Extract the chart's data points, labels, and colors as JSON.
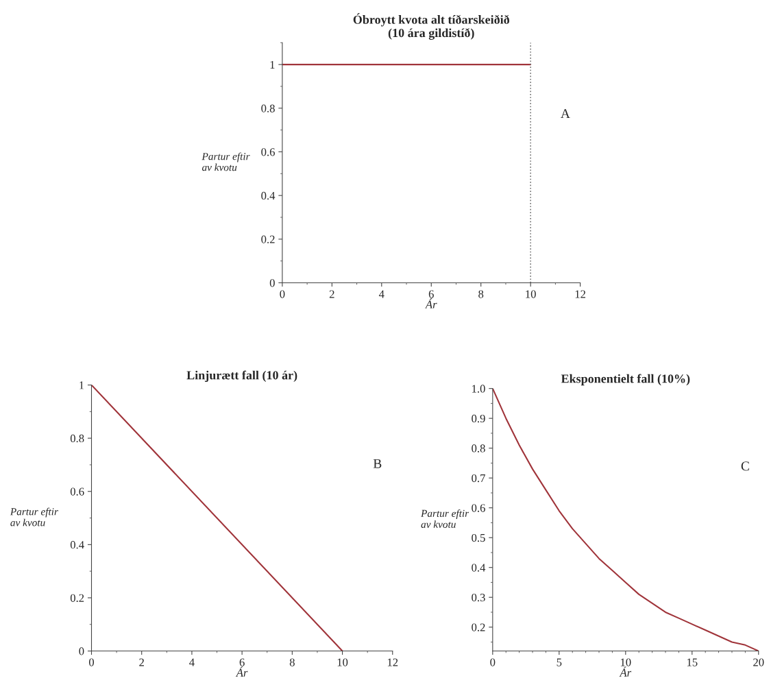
{
  "chart_data": [
    {
      "type": "line",
      "title": "Óbroytt kvota alt tíðarskeiðið\n(10 ára gildistíð)",
      "xlabel": "Ár",
      "ylabel": "Partur eftir\nav kvotu",
      "xlim": [
        0,
        12
      ],
      "ylim": [
        0,
        1.1
      ],
      "xticks": [
        0,
        2,
        4,
        6,
        8,
        10,
        12
      ],
      "yticks": [
        0,
        0.2,
        0.4,
        0.6,
        0.8,
        1
      ],
      "series": [
        {
          "color": "#a0343a",
          "x": [
            0,
            10
          ],
          "values": [
            1,
            1
          ]
        }
      ],
      "ref_lines": [
        {
          "axis": "x",
          "value": 10,
          "color": "#777777",
          "line_style": "dotted"
        }
      ],
      "annotations": [
        "A"
      ]
    },
    {
      "type": "line",
      "title": "Linjurætt fall (10 ár)",
      "xlabel": "Ár",
      "ylabel": "Partur eftir\nav kvotu",
      "xlim": [
        0,
        12
      ],
      "ylim": [
        0,
        1
      ],
      "xticks": [
        0,
        2,
        4,
        6,
        8,
        10,
        12
      ],
      "yticks": [
        0,
        0.2,
        0.4,
        0.6,
        0.8,
        1
      ],
      "series": [
        {
          "color": "#a0343a",
          "x": [
            0,
            10
          ],
          "values": [
            1,
            0
          ]
        }
      ],
      "annotations": [
        "B"
      ]
    },
    {
      "type": "line",
      "title": "Eksponentielt fall (10%)",
      "xlabel": "Ár",
      "ylabel": "Partur eftir\nav kvotu",
      "xlim": [
        0,
        20
      ],
      "ylim": [
        0.12,
        1.0
      ],
      "xticks": [
        0,
        5,
        10,
        15,
        20
      ],
      "yticks": [
        0.2,
        0.3,
        0.4,
        0.5,
        0.6,
        0.7,
        0.8,
        0.9,
        {
          "value": 1.0,
          "label": "1.0"
        }
      ],
      "series": [
        {
          "color": "#a0343a",
          "x": [
            0,
            1,
            2,
            3,
            4,
            5,
            6,
            7,
            8,
            9,
            10,
            11,
            12,
            13,
            14,
            15,
            16,
            17,
            18,
            19,
            20
          ],
          "values": [
            1.0,
            0.9,
            0.81,
            0.73,
            0.66,
            0.59,
            0.53,
            0.48,
            0.43,
            0.39,
            0.35,
            0.31,
            0.28,
            0.25,
            0.23,
            0.21,
            0.19,
            0.17,
            0.15,
            0.14,
            0.12
          ]
        }
      ],
      "annotations": [
        "C"
      ]
    }
  ]
}
